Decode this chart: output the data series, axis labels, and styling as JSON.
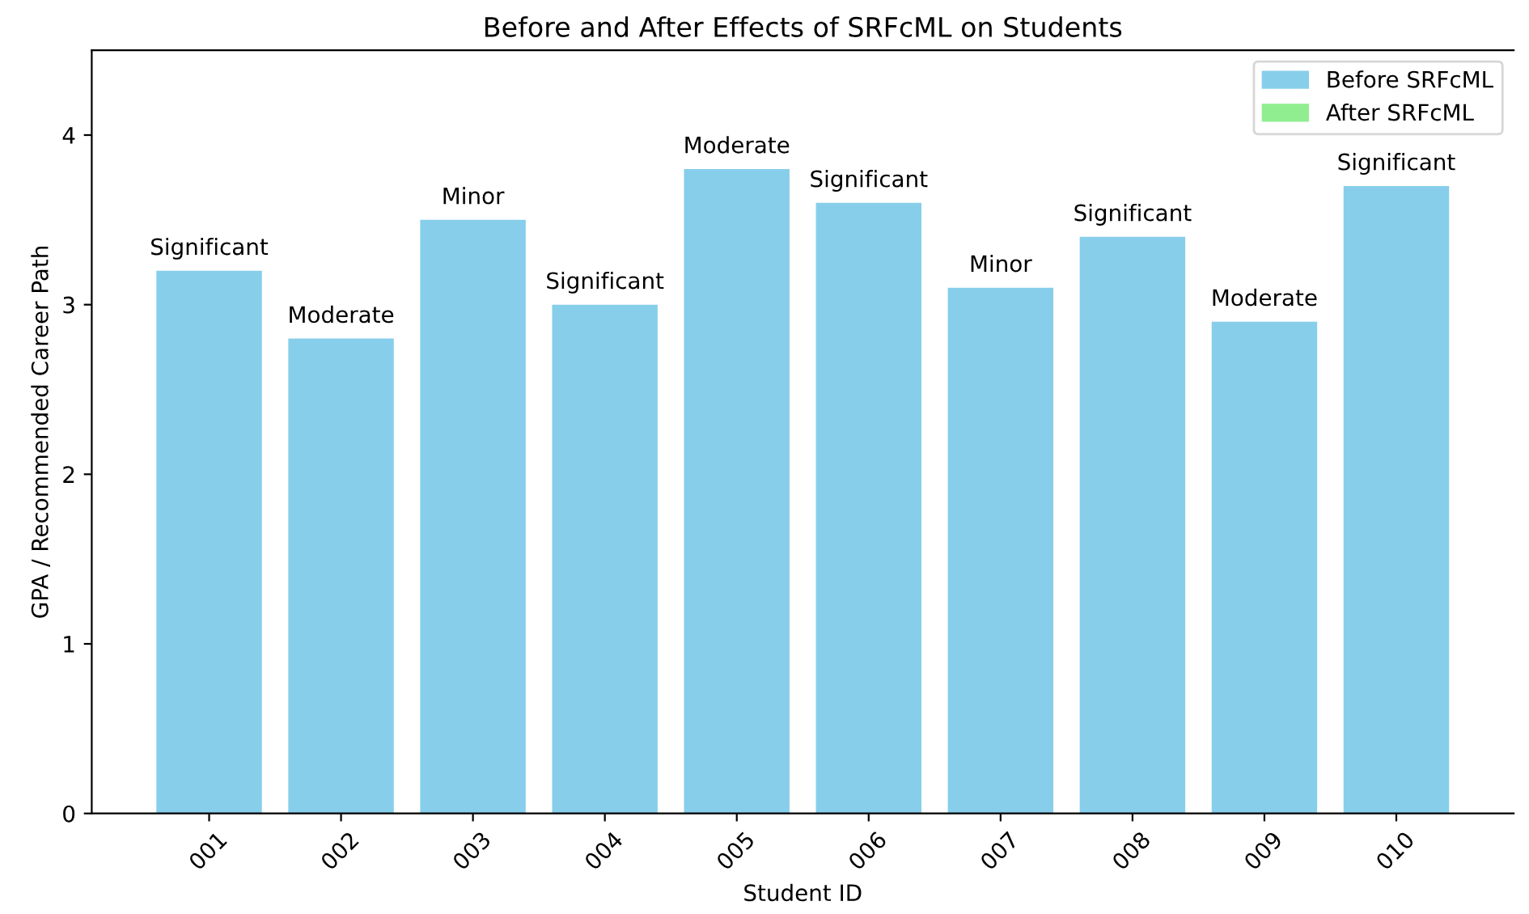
{
  "chart_data": {
    "type": "bar",
    "title": "Before and After Effects of SRFcML on Students",
    "xlabel": "Student ID",
    "ylabel": "GPA / Recommended Career Path",
    "categories": [
      "001",
      "002",
      "003",
      "004",
      "005",
      "006",
      "007",
      "008",
      "009",
      "010"
    ],
    "series": [
      {
        "name": "Before SRFcML",
        "color": "#87ceeb",
        "values": [
          3.2,
          2.8,
          3.5,
          3.0,
          3.8,
          3.6,
          3.1,
          3.4,
          2.9,
          3.7
        ],
        "value_labels": [
          "Significant",
          "Moderate",
          "Minor",
          "Significant",
          "Moderate",
          "Significant",
          "Minor",
          "Significant",
          "Moderate",
          "Significant"
        ]
      },
      {
        "name": "After SRFcML",
        "color": "#90ee90",
        "values": [
          null,
          null,
          null,
          null,
          null,
          null,
          null,
          null,
          null,
          null
        ]
      }
    ],
    "ylim": [
      0,
      4.5
    ],
    "yticks": [
      0,
      1,
      2,
      3,
      4
    ],
    "grid": false,
    "legend": "top right"
  }
}
